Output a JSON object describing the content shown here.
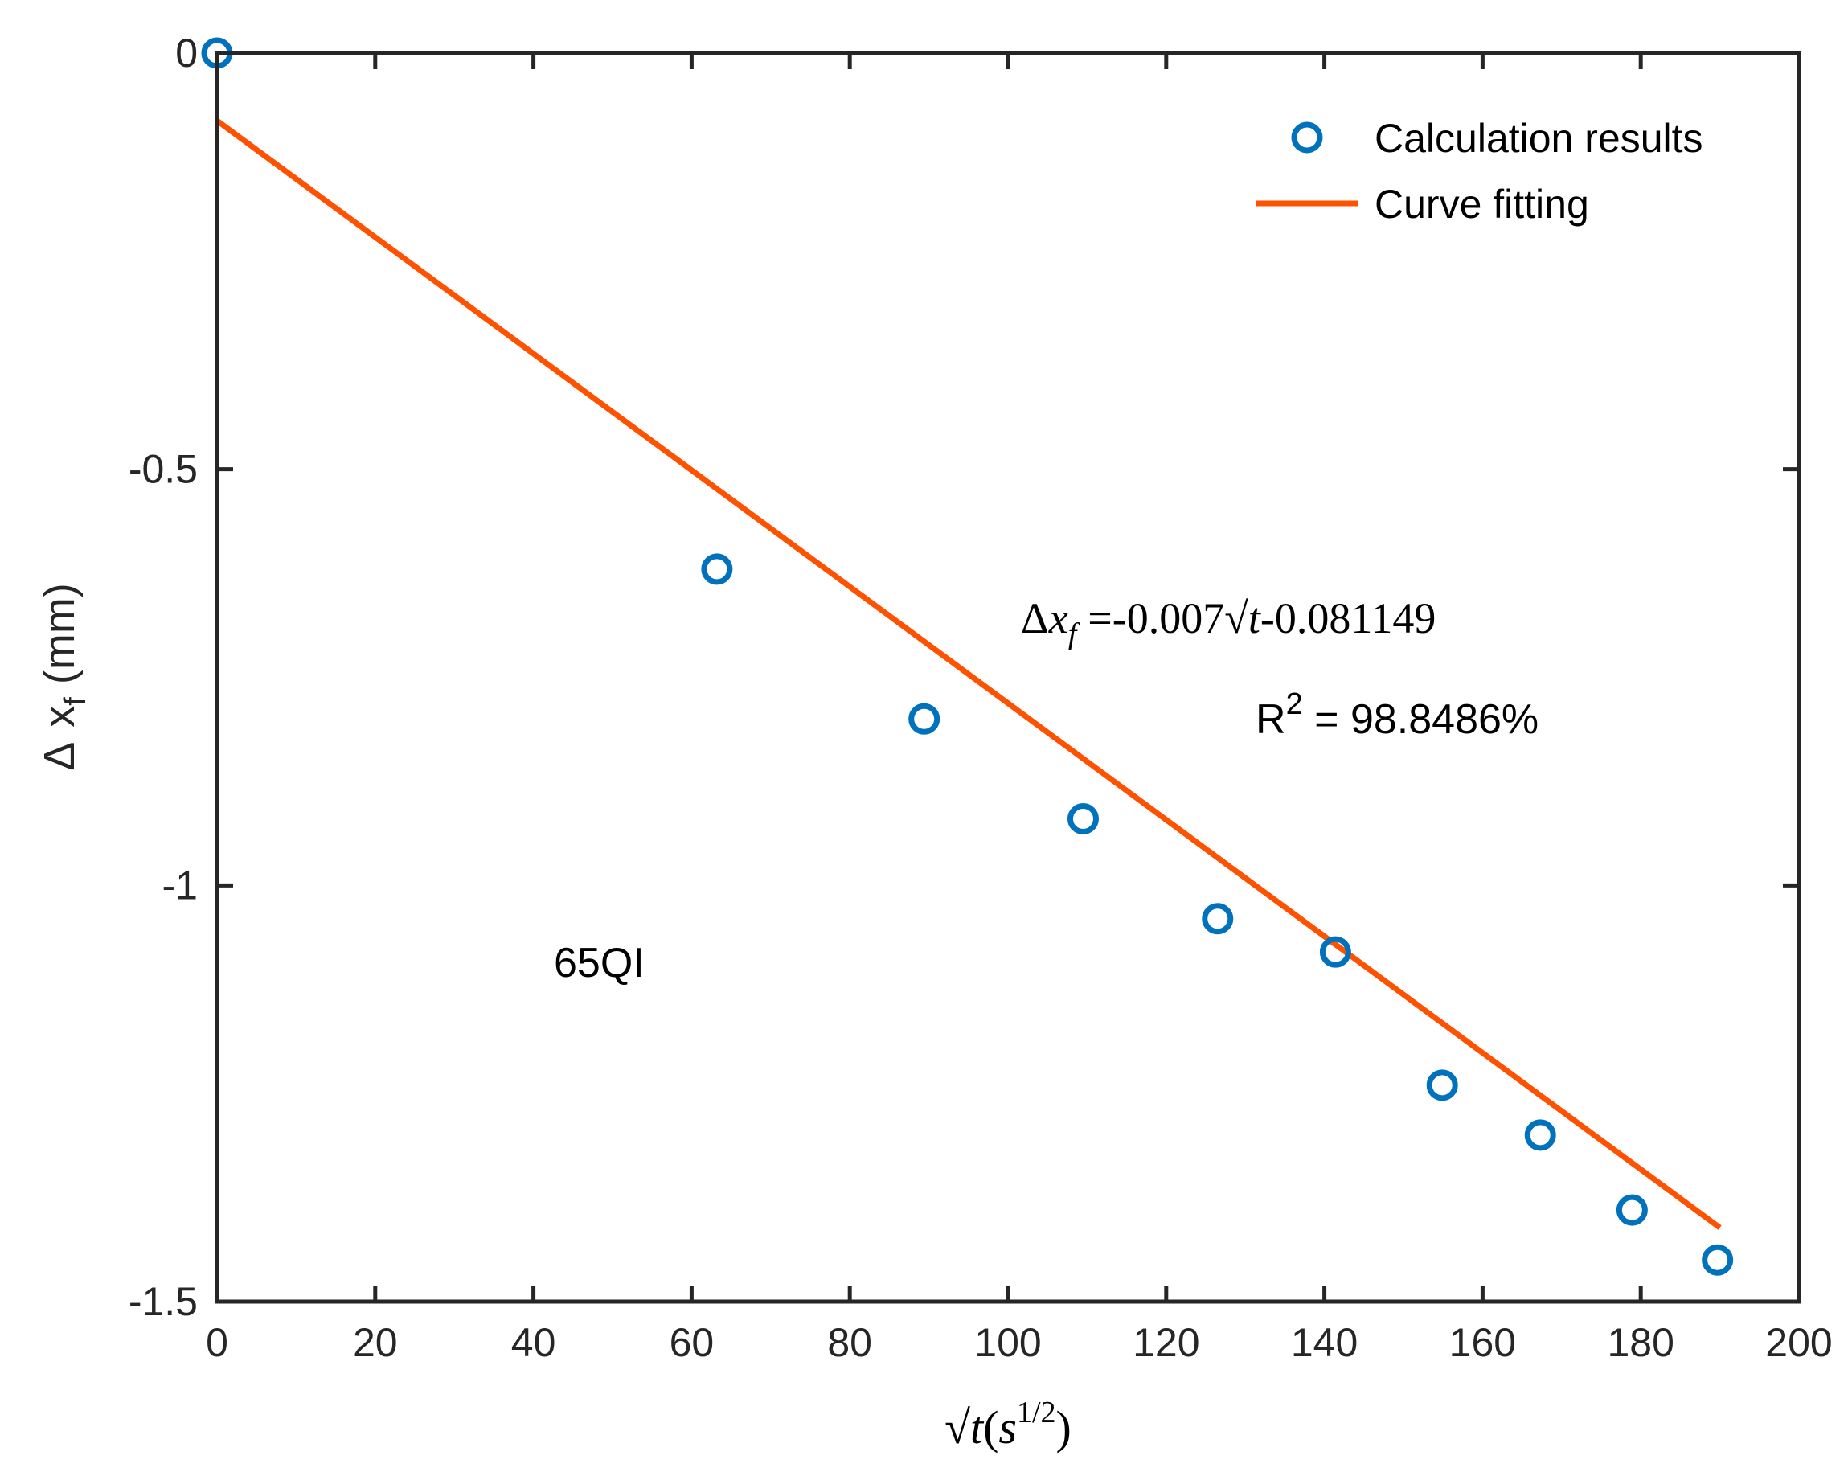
{
  "colors": {
    "points": "#0072BD",
    "fit": "#FF5200",
    "axis": "#262626"
  },
  "chart_data": {
    "type": "scatter",
    "xlim": [
      0,
      200
    ],
    "ylim": [
      -1.5,
      0
    ],
    "x_ticks": [
      0,
      20,
      40,
      60,
      80,
      100,
      120,
      140,
      160,
      180,
      200
    ],
    "x_tick_labels": [
      "0",
      "20",
      "40",
      "60",
      "80",
      "100",
      "120",
      "140",
      "160",
      "180",
      "200"
    ],
    "y_ticks": [
      0,
      -0.5,
      -1,
      -1.5
    ],
    "y_tick_labels": [
      "0",
      "-0.5",
      "-1",
      "-1.5"
    ],
    "xlabel": {
      "sqrt": "√",
      "var": "t",
      "open": "(",
      "base": "s",
      "exp": "1/2",
      "close": ")"
    },
    "ylabel": {
      "delta": "Δ",
      "var": "x",
      "sub": "f",
      "unit": "(mm)"
    },
    "series": [
      {
        "name": "Calculation results",
        "kind": "markers",
        "x": [
          0,
          63.2,
          89.4,
          109.5,
          126.5,
          141.4,
          154.9,
          167.3,
          178.9,
          189.7
        ],
        "y": [
          0,
          -0.62,
          -0.8,
          -0.92,
          -1.04,
          -1.08,
          -1.24,
          -1.3,
          -1.39,
          -1.45
        ]
      },
      {
        "name": "Curve fitting",
        "kind": "line",
        "slope": -0.007,
        "intercept": -0.081149,
        "x_range": [
          0,
          190
        ]
      }
    ],
    "legend": {
      "position": "top-right",
      "entries": [
        "Calculation results",
        "Curve fitting"
      ]
    },
    "annotations": {
      "equation": {
        "delta": "Δ",
        "var": "x",
        "sub": "f",
        "eq": "=-0.007",
        "sqrt": "√",
        "t": "t",
        "tail": "-0.081149"
      },
      "r2": {
        "r": "R",
        "sup": "2",
        "value": " = 98.8486%"
      },
      "sample": "65QI"
    }
  }
}
